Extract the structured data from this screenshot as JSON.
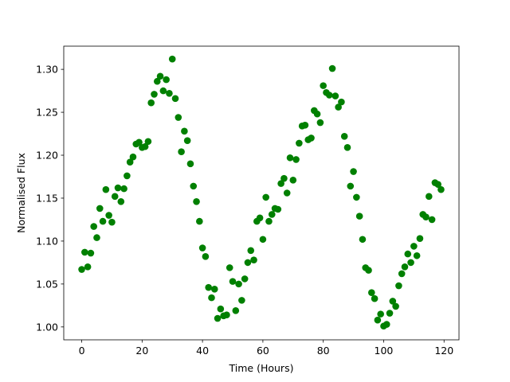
{
  "chart_data": {
    "type": "scatter",
    "xlabel": "Time (Hours)",
    "ylabel": "Normalised Flux",
    "color": "#008000",
    "x": [
      0,
      1,
      2,
      3,
      4,
      5,
      6,
      7,
      8,
      9,
      10,
      11,
      12,
      13,
      14,
      15,
      16,
      17,
      18,
      19,
      20,
      21,
      22,
      23,
      24,
      25,
      26,
      27,
      28,
      29,
      30,
      31,
      32,
      33,
      34,
      35,
      36,
      37,
      38,
      39,
      40,
      41,
      42,
      43,
      44,
      45,
      46,
      47,
      48,
      49,
      50,
      51,
      52,
      53,
      54,
      55,
      56,
      57,
      58,
      59,
      60,
      61,
      62,
      63,
      64,
      65,
      66,
      67,
      68,
      69,
      70,
      71,
      72,
      73,
      74,
      75,
      76,
      77,
      78,
      79,
      80,
      81,
      82,
      83,
      84,
      85,
      86,
      87,
      88,
      89,
      90,
      91,
      92,
      93,
      94,
      95,
      96,
      97,
      98,
      99,
      100,
      101,
      102,
      103,
      104,
      105,
      106,
      107,
      108,
      109,
      110,
      111,
      112,
      113,
      114,
      115,
      116,
      117,
      118,
      119
    ],
    "values": [
      1.067,
      1.087,
      1.07,
      1.086,
      1.117,
      1.104,
      1.138,
      1.123,
      1.16,
      1.13,
      1.122,
      1.152,
      1.162,
      1.146,
      1.161,
      1.176,
      1.192,
      1.198,
      1.213,
      1.215,
      1.209,
      1.21,
      1.216,
      1.261,
      1.271,
      1.286,
      1.292,
      1.275,
      1.288,
      1.272,
      1.312,
      1.266,
      1.244,
      1.204,
      1.228,
      1.217,
      1.19,
      1.164,
      1.146,
      1.123,
      1.092,
      1.082,
      1.046,
      1.034,
      1.044,
      1.01,
      1.021,
      1.013,
      1.014,
      1.069,
      1.053,
      1.019,
      1.05,
      1.031,
      1.056,
      1.075,
      1.089,
      1.078,
      1.123,
      1.127,
      1.102,
      1.151,
      1.123,
      1.131,
      1.138,
      1.137,
      1.167,
      1.173,
      1.156,
      1.197,
      1.171,
      1.195,
      1.214,
      1.234,
      1.235,
      1.218,
      1.22,
      1.252,
      1.248,
      1.238,
      1.281,
      1.273,
      1.27,
      1.301,
      1.269,
      1.256,
      1.262,
      1.222,
      1.209,
      1.164,
      1.181,
      1.151,
      1.129,
      1.102,
      1.069,
      1.066,
      1.04,
      1.033,
      1.008,
      1.015,
      1.001,
      1.003,
      1.016,
      1.03,
      1.024,
      1.048,
      1.062,
      1.07,
      1.085,
      1.075,
      1.094,
      1.083,
      1.103,
      1.131,
      1.128,
      1.152,
      1.125,
      1.168,
      1.166,
      1.16
    ],
    "xlim": [
      -5.95,
      124.95
    ],
    "ylim": [
      0.985,
      1.327
    ],
    "xticks": [
      0,
      20,
      40,
      60,
      80,
      100,
      120
    ],
    "yticks": [
      {
        "value": 1,
        "label": "1.00"
      },
      1.05,
      {
        "value": 1.1,
        "label": "1.10"
      },
      1.15,
      {
        "value": 1.2,
        "label": "1.20"
      },
      1.25,
      {
        "value": 1.3,
        "label": "1.30"
      }
    ]
  }
}
